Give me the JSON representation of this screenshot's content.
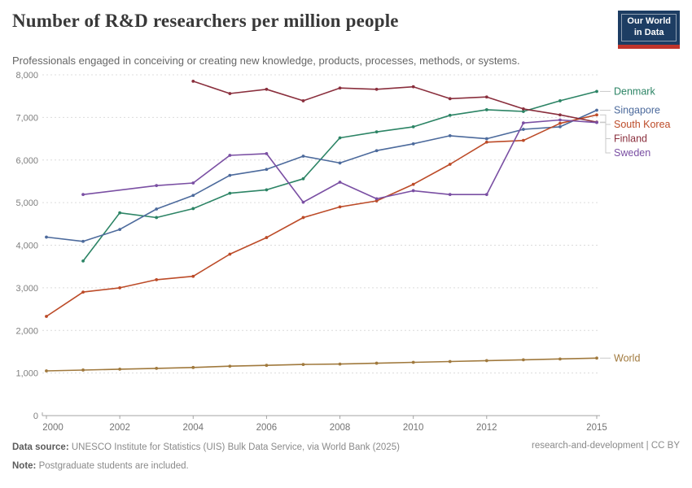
{
  "header": {
    "title": "Number of R&D researchers per million people",
    "subtitle": "Professionals engaged in conceiving or creating new knowledge, products, processes, methods, or systems.",
    "logo_line1": "Our World",
    "logo_line2": "in Data",
    "logo_bg_color": "#1D3D63",
    "logo_bar_color": "#C0342B"
  },
  "chart_data": {
    "type": "line",
    "title": "Number of R&D researchers per million people",
    "xlabel": "",
    "ylabel": "",
    "grid": true,
    "legend_position": "right",
    "x": [
      2000,
      2001,
      2002,
      2003,
      2004,
      2005,
      2006,
      2007,
      2008,
      2009,
      2010,
      2011,
      2012,
      2013,
      2014,
      2015
    ],
    "x_ticks": [
      2000,
      2002,
      2004,
      2006,
      2008,
      2010,
      2012,
      2015
    ],
    "ylim": [
      0,
      8000
    ],
    "y_ticks": [
      0,
      1000,
      2000,
      3000,
      4000,
      5000,
      6000,
      7000,
      8000
    ],
    "series": [
      {
        "name": "Denmark",
        "color": "#2C8465",
        "values": [
          null,
          3630,
          4760,
          4650,
          4860,
          5220,
          5300,
          5560,
          6520,
          6660,
          6780,
          7050,
          7180,
          7140,
          7390,
          7610
        ]
      },
      {
        "name": "Singapore",
        "color": "#4C6A9C",
        "values": [
          4190,
          4090,
          4370,
          4850,
          5170,
          5640,
          5780,
          6090,
          5930,
          6220,
          6380,
          6570,
          6500,
          6720,
          6780,
          7170
        ]
      },
      {
        "name": "South Korea",
        "color": "#BC4B28",
        "values": [
          2330,
          2900,
          3000,
          3190,
          3270,
          3790,
          4180,
          4650,
          4900,
          5040,
          5430,
          5900,
          6420,
          6460,
          6860,
          7060
        ]
      },
      {
        "name": "Finland",
        "color": "#8A2F3D",
        "values": [
          null,
          null,
          null,
          null,
          7850,
          7560,
          7660,
          7390,
          7690,
          7660,
          7720,
          7440,
          7480,
          7200,
          7060,
          6890
        ]
      },
      {
        "name": "Sweden",
        "color": "#7A4FA3",
        "values": [
          null,
          5190,
          null,
          5400,
          5460,
          6110,
          6150,
          5010,
          5480,
          5090,
          5280,
          5190,
          5190,
          6870,
          6940,
          6880
        ]
      },
      {
        "name": "World",
        "color": "#A0793D",
        "values": [
          1050,
          1070,
          1090,
          1110,
          1130,
          1160,
          1180,
          1200,
          1210,
          1230,
          1250,
          1270,
          1290,
          1310,
          1330,
          1350
        ]
      }
    ]
  },
  "footer": {
    "source_label": "Data source:",
    "source_text": " UNESCO Institute for Statistics (UIS) Bulk Data Service, via World Bank (2025)",
    "note_label": "Note:",
    "note_text": " Postgraduate students are included.",
    "right_text": "research-and-development | CC BY"
  }
}
